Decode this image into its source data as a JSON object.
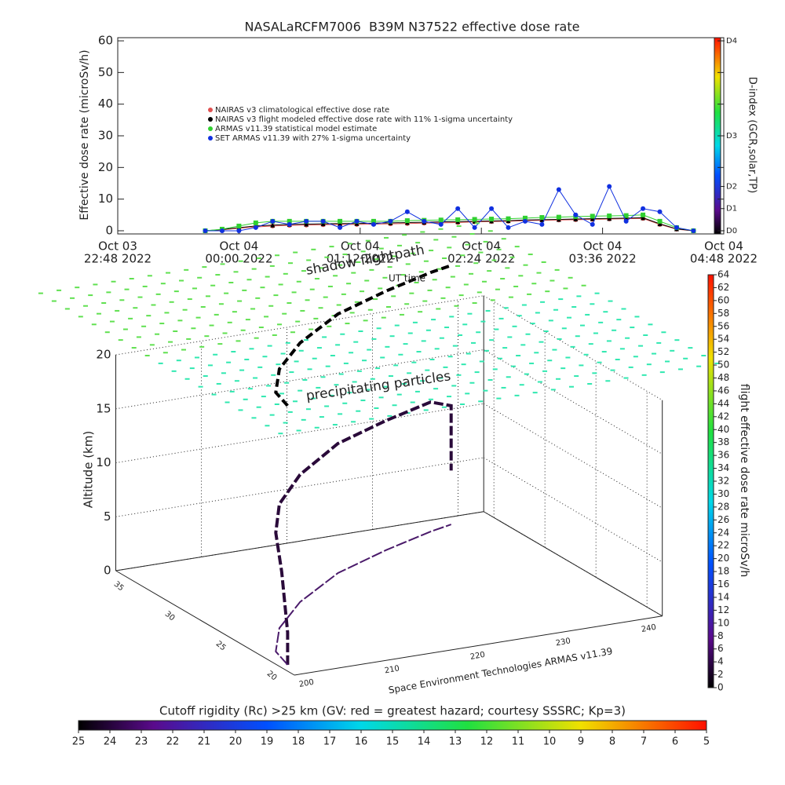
{
  "chart_data": [
    {
      "type": "line",
      "title": "NASALaRCFM7006  B39M N37522 effective dose rate",
      "ylabel": "Effective dose rate (microSv/h)",
      "xlim": [
        "2022-10-03T22:48",
        "2022-10-04T04:48"
      ],
      "xticks": [
        {
          "value": "2022-10-03T22:48",
          "label": [
            "Oct 03",
            "22:48 2022"
          ]
        },
        {
          "value": "2022-10-04T00:00",
          "label": [
            "Oct 04",
            "00:00 2022"
          ]
        },
        {
          "value": "2022-10-04T01:12",
          "label": [
            "Oct 04",
            "01:12 2022"
          ]
        },
        {
          "value": "2022-10-04T02:24",
          "label": [
            "Oct 04",
            "02:24 2022"
          ]
        },
        {
          "value": "2022-10-04T03:36",
          "label": [
            "Oct 04",
            "03:36 2022"
          ]
        },
        {
          "value": "2022-10-04T04:48",
          "label": [
            "Oct 04",
            "04:48 2022"
          ]
        }
      ],
      "ylim": [
        -1,
        61
      ],
      "yticks": [
        0,
        10,
        20,
        30,
        40,
        50,
        60
      ],
      "x": [
        "2022-10-03T23:40",
        "2022-10-03T23:50",
        "2022-10-04T00:00",
        "2022-10-04T00:10",
        "2022-10-04T00:20",
        "2022-10-04T00:30",
        "2022-10-04T00:40",
        "2022-10-04T00:50",
        "2022-10-04T01:00",
        "2022-10-04T01:10",
        "2022-10-04T01:20",
        "2022-10-04T01:30",
        "2022-10-04T01:40",
        "2022-10-04T01:50",
        "2022-10-04T02:00",
        "2022-10-04T02:10",
        "2022-10-04T02:20",
        "2022-10-04T02:30",
        "2022-10-04T02:40",
        "2022-10-04T02:50",
        "2022-10-04T03:00",
        "2022-10-04T03:10",
        "2022-10-04T03:20",
        "2022-10-04T03:30",
        "2022-10-04T03:40",
        "2022-10-04T03:50",
        "2022-10-04T04:00",
        "2022-10-04T04:10",
        "2022-10-04T04:20",
        "2022-10-04T04:30"
      ],
      "series": [
        {
          "name": "NAIRAS v3 climatological effective dose rate",
          "color": "#e05050",
          "marker": "circle",
          "values": [
            0,
            0.3,
            0.8,
            1.2,
            1.5,
            1.7,
            1.8,
            1.9,
            2.0,
            2.0,
            2.1,
            2.2,
            2.3,
            2.4,
            2.5,
            2.6,
            2.8,
            2.9,
            3.0,
            3.2,
            3.3,
            3.4,
            3.5,
            3.6,
            3.7,
            3.8,
            3.9,
            2.0,
            0.5,
            0
          ]
        },
        {
          "name": "NAIRAS v3 flight modeled effective dose rate with 11% 1-sigma uncertainty",
          "color": "#000000",
          "marker": "triangle",
          "values": [
            0,
            0.4,
            1.0,
            1.5,
            1.8,
            2.0,
            2.1,
            2.2,
            2.3,
            2.3,
            2.4,
            2.5,
            2.6,
            2.7,
            2.8,
            2.9,
            3.0,
            3.1,
            3.2,
            3.4,
            3.5,
            3.6,
            3.7,
            3.8,
            3.9,
            4.0,
            4.1,
            2.2,
            0.6,
            0
          ]
        },
        {
          "name": "ARMAS v11.39 statistical model estimate",
          "color": "#30d030",
          "marker": "square",
          "values": [
            0,
            0.5,
            1.5,
            2.5,
            3,
            3,
            3,
            3,
            3,
            3,
            3,
            3,
            3.2,
            3.3,
            3.4,
            3.5,
            3.6,
            3.7,
            3.8,
            4,
            4.2,
            4.3,
            4.5,
            4.6,
            4.7,
            4.8,
            5,
            3,
            1,
            0
          ]
        },
        {
          "name": "SET ARMAS v11.39 with 27% 1-sigma uncertainty",
          "color": "#1030e0",
          "marker": "circle",
          "values": [
            0,
            0,
            0,
            1,
            3,
            2,
            3,
            3,
            1,
            3,
            2,
            3,
            6,
            3,
            2,
            7,
            1,
            7,
            1,
            3,
            2,
            13,
            5,
            2,
            14,
            3,
            7,
            6,
            1,
            0
          ]
        }
      ],
      "colorbar": {
        "label": "D-index (GCR,solar,TP)",
        "ticks": [
          {
            "value": 0,
            "label": "D0"
          },
          {
            "value": 7,
            "label": "D1"
          },
          {
            "value": 14,
            "label": "D2"
          },
          {
            "value": 30,
            "label": "D3"
          },
          {
            "value": 60,
            "label": "D4"
          }
        ]
      }
    },
    {
      "type": "scatter3d",
      "zlabel": "Altitude (km)",
      "xlim": [
        200,
        243
      ],
      "xticks": [
        200,
        210,
        220,
        230,
        240
      ],
      "ylim": [
        18.5,
        36
      ],
      "yticks": [
        20,
        25,
        30,
        35
      ],
      "zlim": [
        0,
        20
      ],
      "zticks": [
        0,
        5,
        10,
        15,
        20
      ],
      "annotations": [
        "shadow flightpath",
        "UT time",
        "precipitating particles",
        "Space Environment Technologies ARMAS v11.39"
      ],
      "series": [
        {
          "color": "#2a0a3a",
          "x": [
            201,
            201,
            201.5,
            202,
            206,
            212,
            220,
            228,
            235,
            238,
            238
          ],
          "y": [
            20,
            20,
            21,
            22,
            25,
            28,
            31,
            33,
            34.5,
            35,
            35
          ],
          "z": [
            0,
            3,
            8,
            11,
            11.5,
            11.8,
            12,
            12,
            12,
            11,
            5
          ]
        }
      ],
      "dose_colorbar": {
        "label": "flight effective dose rate microSv/h",
        "lim": [
          0,
          64
        ],
        "ticks": [
          0,
          2,
          4,
          6,
          8,
          10,
          12,
          14,
          16,
          18,
          20,
          22,
          24,
          26,
          28,
          30,
          32,
          34,
          36,
          38,
          40,
          42,
          44,
          46,
          48,
          50,
          52,
          54,
          56,
          58,
          60,
          62,
          64
        ]
      },
      "rigidity_colorbar": {
        "label": "Cutoff rigidity (Rc) >25 km (GV: red = greatest hazard; courtesy SSSRC; Kp=3)",
        "lim": [
          25,
          5
        ],
        "ticks": [
          25,
          24,
          23,
          22,
          21,
          20,
          19,
          18,
          17,
          16,
          15,
          14,
          13,
          12,
          11,
          10,
          9,
          8,
          7,
          6,
          5
        ]
      }
    }
  ]
}
